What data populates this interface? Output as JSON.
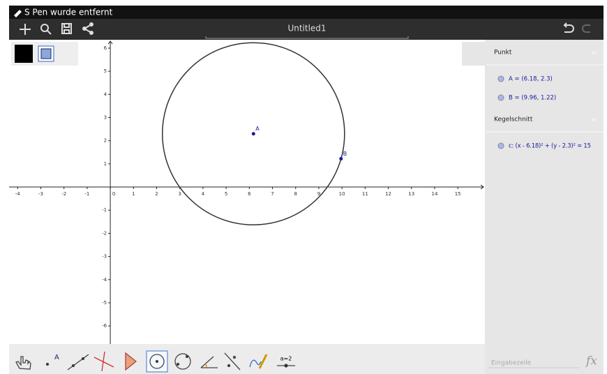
{
  "status_bar": {
    "text": "S Pen wurde entfernt"
  },
  "toolbar": {
    "title": "Untitled1"
  },
  "graphics": {
    "xlim": [
      -4.37,
      16.17
    ],
    "ylim": [
      -6.78,
      6.36
    ],
    "xticks": [
      -4,
      -3,
      -2,
      -1,
      0,
      1,
      2,
      3,
      4,
      5,
      6,
      7,
      8,
      9,
      10,
      11,
      12,
      13,
      14,
      15
    ],
    "yticks": [
      -6,
      -5,
      -4,
      -3,
      -2,
      -1,
      1,
      2,
      3,
      4,
      5,
      6
    ],
    "points": [
      {
        "name": "A",
        "x": 6.18,
        "y": 2.3
      },
      {
        "name": "B",
        "x": 9.96,
        "y": 1.22
      }
    ]
  },
  "algebra": {
    "groups": [
      {
        "title": "Punkt",
        "items": [
          "A = (6.18, 2.3)",
          "B = (9.96, 1.22)"
        ]
      },
      {
        "title": "Kegelschnitt",
        "items": [
          "c: (x - 6.18)² + (y - 2.3)² = 15"
        ]
      }
    ]
  },
  "input_bar": {
    "placeholder": "Eingabezeile",
    "fx": "fx"
  },
  "tools": {
    "slider_label": "a=2"
  }
}
